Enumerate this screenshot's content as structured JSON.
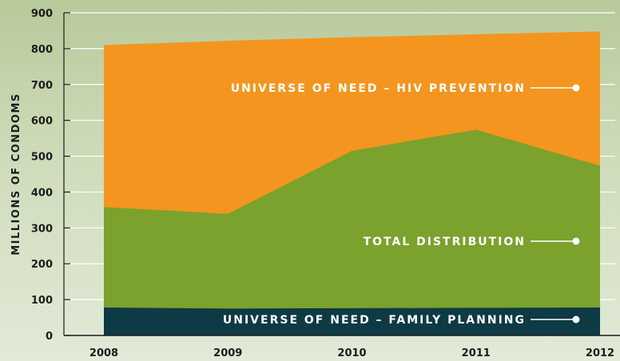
{
  "chart_data": {
    "type": "area",
    "stacked": false,
    "x": [
      "2008",
      "2009",
      "2010",
      "2011",
      "2012"
    ],
    "ylabel": "MILLIONS OF CONDOMS",
    "ylim": [
      0,
      900
    ],
    "yticks": [
      0,
      100,
      200,
      300,
      400,
      500,
      600,
      700,
      800,
      900
    ],
    "grid": true,
    "series": [
      {
        "name": "UNIVERSE OF NEED – HIV PREVENTION",
        "values": [
          810,
          822,
          832,
          840,
          848
        ],
        "color": "#f4951f"
      },
      {
        "name": "TOTAL DISTRIBUTION",
        "values": [
          358,
          339,
          515,
          574,
          473
        ],
        "color": "#7aa22d"
      },
      {
        "name": "UNIVERSE OF NEED – FAMILY PLANNING",
        "values": [
          78,
          75,
          76,
          77,
          78
        ],
        "color": "#0d3a44"
      }
    ]
  },
  "colors": {
    "gridline": "#ffffff",
    "axis": "#1c1c1c",
    "annotation_text": "#ffffff"
  }
}
